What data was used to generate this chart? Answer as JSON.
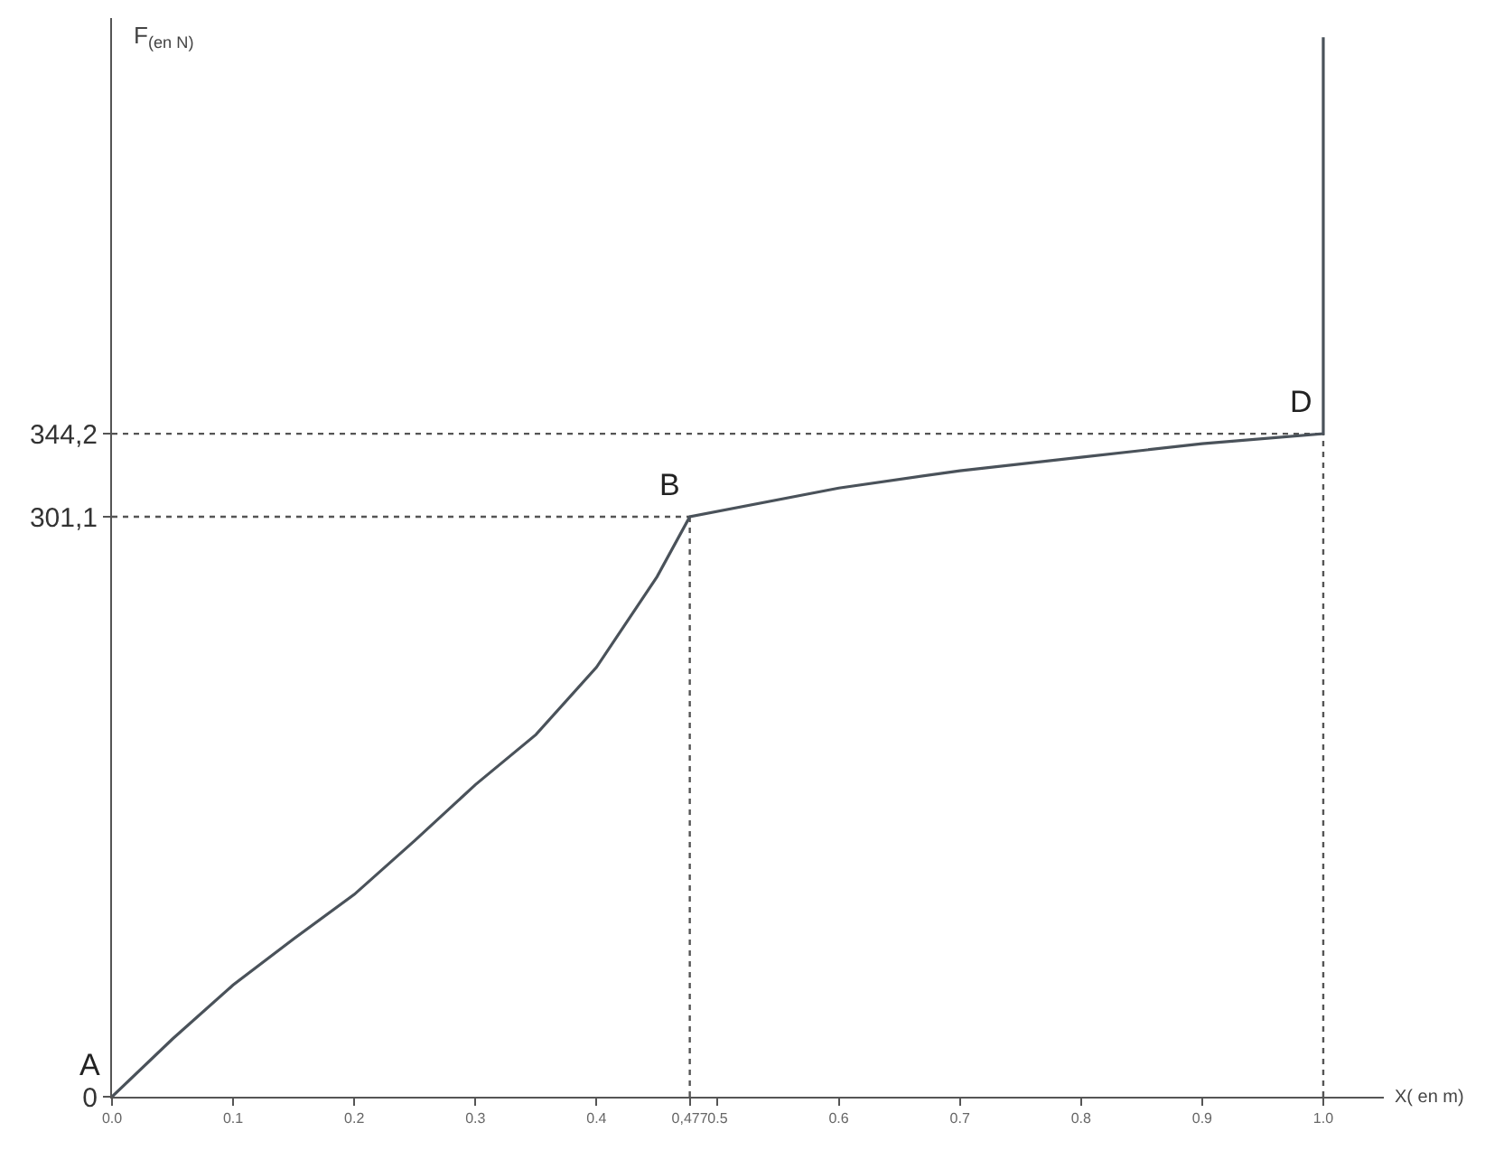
{
  "chart_data": {
    "type": "line",
    "xlabel": "X( en m)",
    "ylabel": "F$_{(en N)}$",
    "x": [
      0,
      0.05,
      0.1,
      0.15,
      0.2,
      0.25,
      0.3,
      0.35,
      0.4,
      0.45,
      0.477,
      0.6,
      0.7,
      0.8,
      0.9,
      1.0,
      1.0
    ],
    "series": [
      {
        "color": "#4a525a",
        "values": [
          0,
          30,
          58,
          82,
          105,
          133,
          162,
          188,
          223,
          270,
          301.1,
          316,
          325,
          332,
          339,
          344.2,
          550
        ]
      }
    ],
    "xlim": [
      0,
      1.05
    ],
    "ylim": [
      0,
      560
    ],
    "xticks": [
      {
        "value": 0,
        "label": "0.0"
      },
      0.1,
      0.2,
      0.3,
      0.4,
      {
        "value": 0.477,
        "label": "0,477"
      },
      0.5,
      0.6,
      0.7,
      0.8,
      0.9,
      {
        "value": 1.0,
        "label": "1.0"
      }
    ],
    "yticks": [
      0,
      {
        "value": 301.1,
        "label": "301,1"
      },
      {
        "value": 344.2,
        "label": "344,2"
      }
    ],
    "ref_lines": [
      {
        "axis": "y",
        "value": 301.1,
        "line_style": "dotted",
        "color": "#555555"
      },
      {
        "axis": "y",
        "value": 344.2,
        "line_style": "dotted",
        "color": "#555555"
      },
      {
        "axis": "x",
        "value": 0.477,
        "line_style": "dotted",
        "color": "#555555"
      },
      {
        "axis": "x",
        "value": 1.0,
        "line_style": "dotted",
        "color": "#555555"
      }
    ],
    "annotations": [
      {
        "text": "A",
        "x": 0,
        "y": 0
      },
      {
        "text": "B",
        "x": 0.477,
        "y": 301.1
      },
      {
        "text": "D",
        "x": 1.0,
        "y": 344.2
      }
    ],
    "grid": false,
    "marker": "none",
    "line_style": "solid"
  }
}
